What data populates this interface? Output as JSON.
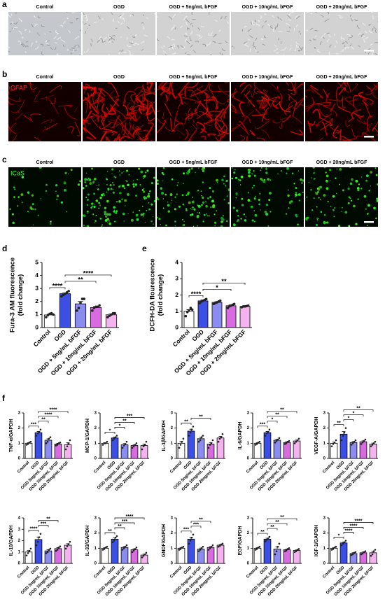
{
  "image_panels": [
    {
      "letter": "a",
      "columns": [
        "Control",
        "OGD",
        "OGD + 5ng/mL bFGF",
        "OGD + 10ng/mL bFGF",
        "OGD + 20ng/mL bFGF"
      ]
    },
    {
      "letter": "b",
      "stain": "GFAP",
      "columns": [
        "Control",
        "OGD",
        "OGD + 5ng/mL bFGF",
        "OGD + 10ng/mL bFGF",
        "OGD + 20ng/mL bFGF"
      ]
    },
    {
      "letter": "c",
      "stain": "ICaS",
      "columns": [
        "Control",
        "OGD",
        "OGD + 5ng/mL bFGF",
        "OGD + 10ng/mL bFGF",
        "OGD + 20ng/mL bFGF"
      ]
    }
  ],
  "chart_letters": [
    "d",
    "e",
    "f"
  ],
  "chart_data": [
    {
      "type": "bar",
      "ylabel": [
        "Fura-3 AM fluorescence",
        "(fold change)"
      ],
      "categories": [
        "Control",
        "OGD",
        "OGD + 5ng/mL bFGF",
        "OGD + 10ng/mL bFGF",
        "OGD + 20ng/mL bFGF"
      ],
      "colors": [
        "#ffffff",
        "#3b4fe4",
        "#8a8cef",
        "#d86be0",
        "#f4b3ef"
      ],
      "values": [
        0.97,
        2.6,
        1.82,
        1.54,
        0.98
      ],
      "errors": [
        0.06,
        0.07,
        0.18,
        0.07,
        0.06
      ],
      "points": [
        [
          0.8,
          0.95,
          1.05,
          1.1,
          1.0
        ],
        [
          2.4,
          2.5,
          2.6,
          2.7,
          2.8
        ],
        [
          1.3,
          1.5,
          1.9,
          2.2,
          2.2
        ],
        [
          1.3,
          1.5,
          1.6,
          1.6,
          1.7
        ],
        [
          0.8,
          0.9,
          1.0,
          1.1,
          1.1
        ]
      ],
      "ylim": [
        0,
        5
      ],
      "yticks": [
        0,
        1,
        2,
        3,
        4,
        5
      ],
      "annotations": [
        {
          "pair": [
            0,
            1
          ],
          "label": "****"
        },
        {
          "pair": [
            1,
            3
          ],
          "label": "**"
        },
        {
          "pair": [
            1,
            4
          ],
          "label": "****"
        }
      ]
    },
    {
      "type": "bar",
      "ylabel": [
        "DCFH-DA flourescence",
        "(fold change)"
      ],
      "categories": [
        "Control",
        "OGD",
        "OGD + 5ng/mL bFGF",
        "OGD + 10ng/mL bFGF",
        "OGD + 20ng/mL bFGF"
      ],
      "colors": [
        "#ffffff",
        "#3b4fe4",
        "#8a8cef",
        "#d86be0",
        "#f4b3ef"
      ],
      "values": [
        1.0,
        1.64,
        1.55,
        1.34,
        1.3
      ],
      "errors": [
        0.1,
        0.05,
        0.04,
        0.05,
        0.02
      ],
      "points": [
        [
          0.7,
          0.95,
          1.05,
          1.2,
          1.1
        ],
        [
          1.5,
          1.6,
          1.65,
          1.7,
          1.75
        ],
        [
          1.45,
          1.5,
          1.55,
          1.6,
          1.65
        ],
        [
          1.2,
          1.3,
          1.35,
          1.4,
          1.45
        ],
        [
          1.25,
          1.3,
          1.3,
          1.32,
          1.35
        ]
      ],
      "ylim": [
        0,
        4
      ],
      "yticks": [
        0,
        1,
        2,
        3,
        4
      ],
      "annotations": [
        {
          "pair": [
            0,
            1
          ],
          "label": "****"
        },
        {
          "pair": [
            1,
            3
          ],
          "label": "*"
        },
        {
          "pair": [
            1,
            4
          ],
          "label": "**"
        }
      ]
    },
    {
      "type": "bar",
      "ylabel": [
        "TNF-α/GAPDH"
      ],
      "categories": [
        "Control",
        "OGD",
        "OGD 5ng/mL bFGF",
        "OGD 10ng/mL bFGF",
        "OGD 20ng/mL bFGF"
      ],
      "colors": [
        "#ffffff",
        "#3b4fe4",
        "#8a8cef",
        "#d86be0",
        "#f4b3ef"
      ],
      "values": [
        1.0,
        1.7,
        1.2,
        0.95,
        0.9
      ],
      "errors": [
        0.04,
        0.08,
        0.09,
        0.04,
        0.13
      ],
      "points": [
        [
          0.9,
          0.95,
          1.05,
          1.1
        ],
        [
          1.5,
          1.65,
          1.75,
          1.9
        ],
        [
          1.0,
          1.1,
          1.3,
          1.4
        ],
        [
          0.85,
          0.9,
          1.0,
          1.05
        ],
        [
          0.6,
          0.8,
          1.0,
          1.2
        ]
      ],
      "ylim": [
        0,
        3
      ],
      "yticks": [
        0,
        1,
        2,
        3
      ],
      "annotations": [
        {
          "pair": [
            0,
            1
          ],
          "label": "***"
        },
        {
          "pair": [
            1,
            2
          ],
          "label": "**"
        },
        {
          "pair": [
            1,
            3
          ],
          "label": "****"
        },
        {
          "pair": [
            1,
            4
          ],
          "label": "****"
        }
      ]
    },
    {
      "type": "bar",
      "ylabel": [
        "MCP-1/GAPDH"
      ],
      "categories": [
        "Control",
        "OGD",
        "OGD 5ng/mL bFGF",
        "OGD 10ng/mL bFGF",
        "OGD 20ng/mL bFGF"
      ],
      "colors": [
        "#ffffff",
        "#3b4fe4",
        "#8a8cef",
        "#d86be0",
        "#f4b3ef"
      ],
      "values": [
        1.0,
        1.35,
        0.9,
        0.85,
        0.85
      ],
      "errors": [
        0.04,
        0.06,
        0.08,
        0.06,
        0.1
      ],
      "points": [
        [
          0.9,
          1.0,
          1.0,
          1.1
        ],
        [
          1.2,
          1.3,
          1.4,
          1.5
        ],
        [
          0.7,
          0.85,
          0.95,
          1.1
        ],
        [
          0.7,
          0.8,
          0.9,
          1.0
        ],
        [
          0.6,
          0.8,
          0.9,
          1.1
        ]
      ],
      "ylim": [
        0,
        3
      ],
      "yticks": [
        0,
        1,
        2,
        3
      ],
      "annotations": [
        {
          "pair": [
            0,
            1
          ],
          "label": "*"
        },
        {
          "pair": [
            1,
            2
          ],
          "label": "*"
        },
        {
          "pair": [
            1,
            3
          ],
          "label": "**"
        },
        {
          "pair": [
            1,
            4
          ],
          "label": "***"
        }
      ]
    },
    {
      "type": "bar",
      "ylabel": [
        "IL-1β/GAPDH"
      ],
      "categories": [
        "Control",
        "OGD",
        "OGD 5ng/mL bFGF",
        "OGD 10ng/mL bFGF",
        "OGD 20ng/mL bFGF"
      ],
      "colors": [
        "#ffffff",
        "#3b4fe4",
        "#8a8cef",
        "#d86be0",
        "#f4b3ef"
      ],
      "values": [
        1.0,
        1.8,
        1.3,
        0.95,
        1.35
      ],
      "errors": [
        0.12,
        0.13,
        0.09,
        0.1,
        0.1
      ],
      "points": [
        [
          0.7,
          0.9,
          1.1,
          1.3
        ],
        [
          1.5,
          1.7,
          1.9,
          2.1
        ],
        [
          1.1,
          1.2,
          1.4,
          1.5
        ],
        [
          0.7,
          0.9,
          1.0,
          1.2
        ],
        [
          1.1,
          1.3,
          1.4,
          1.6
        ]
      ],
      "ylim": [
        0,
        3
      ],
      "yticks": [
        0,
        1,
        2,
        3
      ],
      "annotations": [
        {
          "pair": [
            0,
            1
          ],
          "label": "**"
        },
        {
          "pair": [
            1,
            3
          ],
          "label": "**"
        }
      ]
    },
    {
      "type": "bar",
      "ylabel": [
        "IL-6/GAPDH"
      ],
      "categories": [
        "Control",
        "OGD",
        "OGD 5ng/mL bFGF",
        "OGD 10ng/mL bFGF",
        "OGD 20ng/mL bFGF"
      ],
      "colors": [
        "#ffffff",
        "#3b4fe4",
        "#8a8cef",
        "#d86be0",
        "#f4b3ef"
      ],
      "values": [
        1.0,
        1.7,
        1.2,
        1.05,
        1.15
      ],
      "errors": [
        0.04,
        0.08,
        0.06,
        0.05,
        0.06
      ],
      "points": [
        [
          0.9,
          0.95,
          1.05,
          1.1
        ],
        [
          1.5,
          1.65,
          1.75,
          1.9
        ],
        [
          1.05,
          1.15,
          1.25,
          1.35
        ],
        [
          0.95,
          1.0,
          1.1,
          1.15
        ],
        [
          1.0,
          1.1,
          1.2,
          1.3
        ]
      ],
      "ylim": [
        0,
        3
      ],
      "yticks": [
        0,
        1,
        2,
        3
      ],
      "annotations": [
        {
          "pair": [
            0,
            1
          ],
          "label": "***"
        },
        {
          "pair": [
            1,
            2
          ],
          "label": "*"
        },
        {
          "pair": [
            1,
            3
          ],
          "label": "**"
        },
        {
          "pair": [
            1,
            4
          ],
          "label": "**"
        }
      ]
    },
    {
      "type": "bar",
      "ylabel": [
        "VEGF-A/GAPDH"
      ],
      "categories": [
        "Control",
        "OGD",
        "OGD 5ng/mL bFGF",
        "OGD 10ng/mL bFGF",
        "OGD 20ng/mL bFGF"
      ],
      "colors": [
        "#ffffff",
        "#3b4fe4",
        "#8a8cef",
        "#d86be0",
        "#f4b3ef"
      ],
      "values": [
        1.0,
        1.6,
        1.05,
        1.1,
        0.95
      ],
      "errors": [
        0.08,
        0.17,
        0.06,
        0.06,
        0.06
      ],
      "points": [
        [
          0.8,
          0.95,
          1.05,
          1.2
        ],
        [
          1.2,
          1.5,
          1.7,
          2.0
        ],
        [
          0.9,
          1.0,
          1.1,
          1.2
        ],
        [
          0.95,
          1.05,
          1.15,
          1.25
        ],
        [
          0.8,
          0.9,
          1.0,
          1.1
        ]
      ],
      "ylim": [
        0,
        3
      ],
      "yticks": [
        0,
        1,
        2,
        3
      ],
      "annotations": [
        {
          "pair": [
            0,
            1
          ],
          "label": "**"
        },
        {
          "pair": [
            1,
            2
          ],
          "label": "*"
        },
        {
          "pair": [
            1,
            3
          ],
          "label": "*"
        },
        {
          "pair": [
            1,
            4
          ],
          "label": "**"
        }
      ]
    },
    {
      "type": "bar",
      "ylabel": [
        "IL-10/GAPDH"
      ],
      "categories": [
        "Control",
        "OGD",
        "OGD 5ng/mL bFGF",
        "OGD 10ng/mL bFGF",
        "OGD 20ng/mL bFGF"
      ],
      "colors": [
        "#ffffff",
        "#3b4fe4",
        "#8a8cef",
        "#d86be0",
        "#f4b3ef"
      ],
      "values": [
        1.0,
        2.1,
        1.1,
        1.3,
        1.6
      ],
      "errors": [
        0.12,
        0.22,
        0.09,
        0.09,
        0.13
      ],
      "points": [
        [
          0.7,
          0.9,
          1.1,
          1.3
        ],
        [
          1.6,
          1.9,
          2.3,
          2.6
        ],
        [
          0.9,
          1.0,
          1.2,
          1.3
        ],
        [
          1.1,
          1.2,
          1.4,
          1.5
        ],
        [
          1.3,
          1.5,
          1.7,
          1.9
        ]
      ],
      "ylim": [
        0,
        4
      ],
      "yticks": [
        0,
        1,
        2,
        3,
        4
      ],
      "annotations": [
        {
          "pair": [
            0,
            1
          ],
          "label": "****"
        },
        {
          "pair": [
            1,
            2
          ],
          "label": "***"
        },
        {
          "pair": [
            1,
            3
          ],
          "label": "**"
        }
      ]
    },
    {
      "type": "bar",
      "ylabel": [
        "IL-33/GAPDH"
      ],
      "categories": [
        "Control",
        "OGD",
        "OGD 5ng/mL bFGF",
        "OGD 10ng/mL bFGF",
        "OGD 20ng/mL bFGF"
      ],
      "colors": [
        "#ffffff",
        "#3b4fe4",
        "#8a8cef",
        "#d86be0",
        "#f4b3ef"
      ],
      "values": [
        1.0,
        1.6,
        1.05,
        0.9,
        0.55
      ],
      "errors": [
        0.04,
        0.09,
        0.06,
        0.06,
        0.06
      ],
      "points": [
        [
          0.9,
          0.95,
          1.05,
          1.1
        ],
        [
          1.4,
          1.5,
          1.7,
          1.8
        ],
        [
          0.9,
          1.0,
          1.1,
          1.2
        ],
        [
          0.75,
          0.85,
          0.95,
          1.05
        ],
        [
          0.4,
          0.5,
          0.6,
          0.7
        ]
      ],
      "ylim": [
        0,
        3
      ],
      "yticks": [
        0,
        1,
        2,
        3
      ],
      "annotations": [
        {
          "pair": [
            0,
            1
          ],
          "label": "**"
        },
        {
          "pair": [
            1,
            2
          ],
          "label": "**"
        },
        {
          "pair": [
            1,
            3
          ],
          "label": "***"
        },
        {
          "pair": [
            1,
            4
          ],
          "label": "****"
        }
      ]
    },
    {
      "type": "bar",
      "ylabel": [
        "GNDF/GAPDH"
      ],
      "categories": [
        "Control",
        "OGD",
        "OGD 5ng/mL bFGF",
        "OGD 10ng/mL bFGF",
        "OGD 20ng/mL bFGF"
      ],
      "colors": [
        "#ffffff",
        "#3b4fe4",
        "#8a8cef",
        "#d86be0",
        "#f4b3ef"
      ],
      "values": [
        1.0,
        1.6,
        0.95,
        1.05,
        1.2
      ],
      "errors": [
        0.04,
        0.13,
        0.06,
        0.06,
        0.04
      ],
      "points": [
        [
          0.9,
          0.95,
          1.05,
          1.1
        ],
        [
          1.3,
          1.5,
          1.7,
          1.9
        ],
        [
          0.8,
          0.9,
          1.0,
          1.1
        ],
        [
          0.9,
          1.0,
          1.1,
          1.2
        ],
        [
          1.1,
          1.15,
          1.25,
          1.3
        ]
      ],
      "ylim": [
        0,
        3
      ],
      "yticks": [
        0,
        1,
        2,
        3
      ],
      "annotations": [
        {
          "pair": [
            0,
            1
          ],
          "label": "***"
        },
        {
          "pair": [
            1,
            2
          ],
          "label": "***"
        },
        {
          "pair": [
            1,
            3
          ],
          "label": "**"
        }
      ]
    },
    {
      "type": "bar",
      "ylabel": [
        "EGF/GAPDH"
      ],
      "categories": [
        "Control",
        "OGD",
        "OGD 5ng/mL bFGF",
        "OGD 10ng/mL bFGF",
        "OGD 20ng/mL bFGF"
      ],
      "colors": [
        "#ffffff",
        "#3b4fe4",
        "#8a8cef",
        "#d86be0",
        "#f4b3ef"
      ],
      "values": [
        1.0,
        1.6,
        0.95,
        0.9,
        0.85
      ],
      "errors": [
        0.04,
        0.06,
        0.15,
        0.04,
        0.04
      ],
      "points": [
        [
          0.9,
          0.95,
          1.05,
          1.1
        ],
        [
          1.45,
          1.55,
          1.65,
          1.75
        ],
        [
          0.6,
          0.8,
          1.1,
          1.3
        ],
        [
          0.8,
          0.85,
          0.95,
          1.0
        ],
        [
          0.75,
          0.8,
          0.9,
          0.95
        ]
      ],
      "ylim": [
        0,
        3
      ],
      "yticks": [
        0,
        1,
        2,
        3
      ],
      "annotations": [
        {
          "pair": [
            0,
            1
          ],
          "label": "**"
        },
        {
          "pair": [
            1,
            2
          ],
          "label": "**"
        },
        {
          "pair": [
            1,
            3
          ],
          "label": "**"
        },
        {
          "pair": [
            1,
            4
          ],
          "label": "**"
        }
      ]
    },
    {
      "type": "bar",
      "ylabel": [
        "IGF-1/GAPDH"
      ],
      "categories": [
        "Control",
        "OGD",
        "OGD 5ng/mL bFGF",
        "OGD 10ng/mL bFGF",
        "OGD 20ng/mL bFGF"
      ],
      "colors": [
        "#ffffff",
        "#3b4fe4",
        "#8a8cef",
        "#d86be0",
        "#f4b3ef"
      ],
      "values": [
        1.0,
        1.35,
        0.65,
        0.7,
        0.7
      ],
      "errors": [
        0.04,
        0.06,
        0.05,
        0.05,
        0.09
      ],
      "points": [
        [
          0.9,
          0.95,
          1.05,
          1.1
        ],
        [
          1.2,
          1.3,
          1.4,
          1.5
        ],
        [
          0.55,
          0.6,
          0.7,
          0.75
        ],
        [
          0.6,
          0.65,
          0.75,
          0.8
        ],
        [
          0.5,
          0.6,
          0.8,
          0.9
        ]
      ],
      "ylim": [
        0,
        3
      ],
      "yticks": [
        0,
        1,
        2,
        3
      ],
      "annotations": [
        {
          "pair": [
            0,
            1
          ],
          "label": "*"
        },
        {
          "pair": [
            1,
            2
          ],
          "label": "****"
        },
        {
          "pair": [
            1,
            3
          ],
          "label": "****"
        },
        {
          "pair": [
            1,
            4
          ],
          "label": "****"
        }
      ]
    }
  ]
}
